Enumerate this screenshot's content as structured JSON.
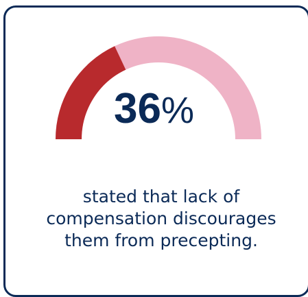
{
  "chart_data": {
    "type": "pie",
    "value_label": "36",
    "value_unit": "%",
    "slices": [
      {
        "value": 36,
        "color": "#b82a2d"
      },
      {
        "value": 64,
        "color": "#efb3c6"
      }
    ],
    "caption_lines": [
      "stated that lack of",
      "compensation discourages",
      "them from precepting."
    ]
  },
  "colors": {
    "accent": "#b82a2d",
    "track": "#efb3c6",
    "text": "#0b2a57",
    "border": "#0b2a57"
  }
}
